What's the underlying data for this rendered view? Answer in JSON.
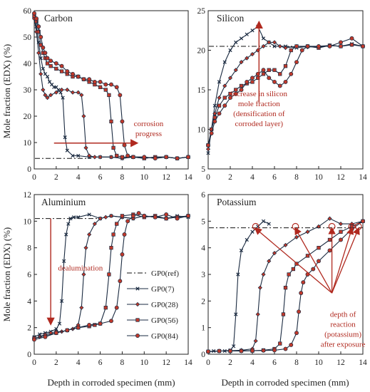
{
  "figure": {
    "ylabel_top": "Mole fraction (EDX) (%)",
    "ylabel_bottom": "Mole fraction (EDX) (%)",
    "xlabel_left": "Depth in  corroded specimen (mm)",
    "xlabel_right": "Depth in  corroded specimen (mm)"
  },
  "colors": {
    "series_line": "#1a2a40",
    "marker_fill": "#c0392b",
    "annotation": "#b0291f",
    "axis": "#222222"
  },
  "chart_data": [
    {
      "id": "carbon",
      "type": "line",
      "title": "Carbon",
      "xlim": [
        0,
        14
      ],
      "ylim": [
        0,
        60
      ],
      "xticks": [
        0,
        2,
        4,
        6,
        8,
        10,
        12,
        14
      ],
      "yticks": [
        0,
        10,
        20,
        30,
        40,
        50,
        60
      ],
      "reference_line": {
        "name": "GP0(ref)",
        "y": 4
      },
      "series": [
        {
          "name": "GP0(7)",
          "x": [
            0,
            0.2,
            0.4,
            0.6,
            0.8,
            1.0,
            1.2,
            1.4,
            1.6,
            1.8,
            2.0,
            2.2,
            2.4,
            2.6,
            2.8,
            3.0,
            3.5,
            4,
            5,
            6,
            7,
            8,
            9,
            10,
            11,
            12,
            13,
            14
          ],
          "y": [
            58,
            54,
            48,
            42,
            38,
            36,
            35,
            33,
            32,
            31,
            31,
            30,
            29,
            27,
            12,
            7,
            5,
            5,
            4.5,
            4.5,
            4.5,
            4,
            4.5,
            4,
            4.5,
            4.5,
            4,
            4.5
          ]
        },
        {
          "name": "GP0(28)",
          "x": [
            0,
            0.2,
            0.4,
            0.6,
            0.8,
            1.0,
            1.2,
            1.5,
            2,
            2.5,
            3,
            3.5,
            4,
            4.3,
            4.5,
            4.7,
            5,
            5.5,
            6,
            7,
            8,
            9,
            10,
            11,
            12,
            13,
            14
          ],
          "y": [
            57,
            52,
            44,
            36,
            30,
            28,
            27,
            28,
            29,
            30,
            30,
            29,
            29,
            28,
            20,
            8,
            5,
            4.5,
            4.5,
            4.5,
            4,
            4.5,
            4.5,
            4,
            4.5,
            4,
            4.5
          ]
        },
        {
          "name": "GP0(56)",
          "x": [
            0,
            0.2,
            0.4,
            0.6,
            0.8,
            1.0,
            1.2,
            1.5,
            2,
            2.5,
            3,
            3.5,
            4,
            4.5,
            5,
            5.5,
            6,
            6.5,
            6.8,
            7.0,
            7.2,
            7.5,
            8,
            9,
            10,
            11,
            12,
            13,
            14
          ],
          "y": [
            58,
            56,
            52,
            47,
            44,
            42,
            40,
            39,
            38,
            37,
            36,
            35,
            35,
            34,
            33,
            32,
            31,
            30,
            28,
            18,
            8,
            5,
            4.5,
            4.5,
            4,
            4.5,
            4.5,
            4,
            4.5
          ]
        },
        {
          "name": "GP0(84)",
          "x": [
            0,
            0.2,
            0.4,
            0.6,
            0.8,
            1.0,
            1.2,
            1.5,
            2,
            2.5,
            3,
            3.5,
            4,
            4.5,
            5,
            5.5,
            6,
            6.5,
            7,
            7.5,
            7.8,
            8.0,
            8.2,
            8.5,
            9,
            10,
            11,
            12,
            13,
            14
          ],
          "y": [
            59,
            57,
            54,
            50,
            46,
            44,
            42,
            41,
            40,
            39,
            37,
            36,
            35,
            34,
            34,
            33,
            33,
            32,
            32,
            31,
            28,
            18,
            9,
            5,
            4.5,
            4.5,
            4,
            4.5,
            4,
            4.5
          ]
        }
      ],
      "annotations": [
        {
          "lines": [
            "corrosion",
            "progress"
          ],
          "x": 10.4,
          "y": 16.2
        }
      ]
    },
    {
      "id": "silicon",
      "type": "line",
      "title": "Silicon",
      "xlim": [
        0,
        14
      ],
      "ylim": [
        5,
        25
      ],
      "xticks": [
        0,
        2,
        4,
        6,
        8,
        10,
        12,
        14
      ],
      "yticks": [
        5,
        10,
        15,
        20,
        25
      ],
      "reference_line": {
        "name": "GP0(ref)",
        "y": 20.5
      },
      "series": [
        {
          "name": "GP0(7)",
          "x": [
            0,
            0.3,
            0.6,
            1.0,
            1.5,
            2.0,
            2.5,
            3.0,
            3.5,
            4.0,
            4.5,
            5.0,
            5.5,
            6.0,
            7,
            8,
            9,
            10,
            11,
            12,
            13,
            14
          ],
          "y": [
            7,
            10,
            13,
            16,
            18.5,
            20,
            21,
            21.5,
            22,
            22.5,
            23,
            21.5,
            21,
            20.5,
            20.5,
            20.3,
            20.5,
            20.4,
            20.6,
            20.5,
            20.8,
            20.5
          ]
        },
        {
          "name": "GP0(28)",
          "x": [
            0,
            0.3,
            0.6,
            1.0,
            1.5,
            2.0,
            2.5,
            3.0,
            3.5,
            4.0,
            4.5,
            5.0,
            5.5,
            6.0,
            6.5,
            7,
            8,
            9,
            10,
            11,
            12,
            13,
            14
          ],
          "y": [
            7.5,
            10,
            12,
            14,
            15.5,
            16.5,
            17.5,
            18.5,
            19,
            19.5,
            20,
            20.5,
            21,
            21,
            20.5,
            20.3,
            20.5,
            20.4,
            20.5,
            20.6,
            20.5,
            20.7,
            20.5
          ]
        },
        {
          "name": "GP0(56)",
          "x": [
            0,
            0.3,
            0.6,
            1.0,
            1.5,
            2.0,
            2.5,
            3.0,
            3.5,
            4.0,
            4.5,
            5.0,
            5.5,
            6.0,
            6.5,
            7.0,
            7.5,
            8,
            9,
            10,
            11,
            12,
            13,
            14
          ],
          "y": [
            8,
            10,
            11.5,
            13,
            14,
            14.5,
            15,
            15.5,
            15.8,
            16,
            16.5,
            17,
            17.5,
            17.5,
            17,
            18,
            20,
            20.5,
            20.5,
            20.3,
            20.6,
            20.5,
            20.7,
            20.5
          ]
        },
        {
          "name": "GP0(84)",
          "x": [
            0,
            0.3,
            0.6,
            1.0,
            1.5,
            2.0,
            2.5,
            3.0,
            3.5,
            4.0,
            4.5,
            5.0,
            5.5,
            6.0,
            6.5,
            7.0,
            7.5,
            8.0,
            8.5,
            9,
            10,
            11,
            12,
            13,
            14
          ],
          "y": [
            8,
            9.5,
            11,
            12,
            13,
            14,
            14.5,
            15,
            16,
            16.5,
            17,
            17.5,
            16.5,
            16,
            15.5,
            16,
            17,
            18.5,
            20,
            20.5,
            20.5,
            20.5,
            21,
            21.5,
            20.5
          ]
        }
      ],
      "annotations": [
        {
          "lines": [
            "increase in silicon",
            "mole fraction",
            "(densification of",
            "corroded layer)"
          ],
          "x": 4.6,
          "y": 14.2
        }
      ]
    },
    {
      "id": "aluminium",
      "type": "line",
      "title": "Aluminium",
      "xlim": [
        0,
        14
      ],
      "ylim": [
        0,
        12
      ],
      "xticks": [
        0,
        2,
        4,
        6,
        8,
        10,
        12,
        14
      ],
      "yticks": [
        0,
        2,
        4,
        6,
        8,
        10,
        12
      ],
      "reference_line": {
        "name": "GP0(ref)",
        "y": 10.2
      },
      "series": [
        {
          "name": "GP0(7)",
          "x": [
            0,
            0.5,
            1.0,
            1.5,
            2.0,
            2.3,
            2.5,
            2.7,
            2.9,
            3.1,
            3.3,
            3.6,
            4,
            5,
            6,
            7,
            8,
            9,
            10,
            11,
            12,
            13,
            14
          ],
          "y": [
            1.3,
            1.5,
            1.6,
            1.7,
            1.9,
            2.3,
            4.0,
            7.0,
            9.0,
            9.8,
            10.2,
            10.3,
            10.3,
            10.5,
            10.2,
            10.4,
            10.3,
            10.2,
            10.4,
            10.3,
            10.2,
            10.4,
            10.3
          ]
        },
        {
          "name": "GP0(28)",
          "x": [
            0,
            0.5,
            1.0,
            1.5,
            2,
            2.5,
            3,
            3.5,
            4.0,
            4.3,
            4.5,
            4.7,
            5.0,
            5.5,
            6.0,
            6.5,
            7,
            8,
            9,
            10,
            11,
            12,
            13,
            14
          ],
          "y": [
            1.2,
            1.3,
            1.5,
            1.6,
            1.7,
            1.7,
            1.8,
            1.9,
            2.2,
            3.5,
            6.0,
            8.0,
            9.0,
            9.8,
            10.2,
            10.3,
            10.4,
            10.3,
            10.2,
            10.4,
            10.3,
            10.2,
            10.3,
            10.4
          ]
        },
        {
          "name": "GP0(56)",
          "x": [
            0,
            1,
            2,
            3,
            4,
            5,
            5.5,
            6.0,
            6.5,
            6.8,
            7.0,
            7.2,
            7.5,
            8,
            9,
            10,
            11,
            12,
            13,
            14
          ],
          "y": [
            1.2,
            1.4,
            1.6,
            1.8,
            2.0,
            2.1,
            2.2,
            2.3,
            3.5,
            6.0,
            8.0,
            9.0,
            9.8,
            10.4,
            10.5,
            10.3,
            10.4,
            10.2,
            10.3,
            10.4
          ]
        },
        {
          "name": "GP0(84)",
          "x": [
            0,
            1,
            2,
            3,
            4,
            5,
            6,
            7.0,
            7.5,
            7.8,
            8.0,
            8.2,
            8.5,
            9.0,
            9.5,
            10,
            11,
            12,
            13,
            14
          ],
          "y": [
            1.1,
            1.3,
            1.6,
            1.8,
            2.0,
            2.2,
            2.3,
            2.5,
            3.5,
            5.5,
            7.5,
            9.0,
            10.0,
            10.4,
            10.6,
            10.4,
            10.3,
            10.5,
            10.2,
            10.4
          ]
        }
      ],
      "annotations": [
        {
          "lines": [
            "dealumination"
          ],
          "x": 4.2,
          "y": 6.3
        }
      ],
      "legend": {
        "placement": "right",
        "entries": [
          "GP0(ref)",
          "GP0(7)",
          "GP0(28)",
          "GP0(56)",
          "GP0(84)"
        ]
      }
    },
    {
      "id": "potassium",
      "type": "line",
      "title": "Potassium",
      "xlim": [
        0,
        14
      ],
      "ylim": [
        0,
        6
      ],
      "xticks": [
        0,
        2,
        4,
        6,
        8,
        10,
        12,
        14
      ],
      "yticks": [
        0,
        1,
        2,
        3,
        4,
        5,
        6
      ],
      "reference_line": {
        "name": "GP0(ref)",
        "y": 4.75
      },
      "series": [
        {
          "name": "GP0(7)",
          "x": [
            0,
            0.5,
            1,
            1.5,
            2.0,
            2.3,
            2.5,
            2.7,
            3.0,
            3.5,
            4.0,
            4.5,
            5.0,
            5.5
          ],
          "y": [
            0.1,
            0.12,
            0.12,
            0.12,
            0.15,
            0.3,
            1.5,
            3.0,
            3.9,
            4.3,
            4.6,
            4.8,
            5.0,
            4.9
          ]
        },
        {
          "name": "GP0(28)",
          "x": [
            0,
            1,
            2,
            3,
            4.0,
            4.3,
            4.5,
            4.7,
            5.0,
            5.5,
            6,
            7,
            8,
            9,
            10,
            11,
            12,
            13,
            14
          ],
          "y": [
            0.1,
            0.12,
            0.13,
            0.15,
            0.2,
            0.5,
            1.5,
            2.5,
            3.0,
            3.5,
            3.8,
            4.1,
            4.4,
            4.6,
            4.8,
            5.1,
            4.9,
            4.9,
            5.0
          ]
        },
        {
          "name": "GP0(56)",
          "x": [
            0,
            1,
            2,
            3,
            4,
            5,
            6.0,
            6.5,
            6.8,
            7.0,
            7.3,
            7.7,
            8,
            9,
            10,
            11,
            12,
            13,
            14
          ],
          "y": [
            0.1,
            0.12,
            0.12,
            0.13,
            0.13,
            0.15,
            0.2,
            0.4,
            1.5,
            2.5,
            3.0,
            3.2,
            3.4,
            3.7,
            4.0,
            4.3,
            4.6,
            4.8,
            5.0
          ]
        },
        {
          "name": "GP0(84)",
          "x": [
            0,
            1,
            2,
            3,
            4,
            5,
            6,
            7,
            7.5,
            8.0,
            8.2,
            8.4,
            8.6,
            9.0,
            9.5,
            10,
            11,
            12,
            13,
            14
          ],
          "y": [
            0.1,
            0.12,
            0.12,
            0.12,
            0.13,
            0.14,
            0.15,
            0.2,
            0.35,
            0.8,
            1.6,
            2.3,
            2.7,
            3.0,
            3.2,
            3.5,
            3.9,
            4.3,
            4.7,
            5.0
          ]
        }
      ],
      "annotations": [
        {
          "lines": [
            "depth of",
            "reaction",
            "(potassium)",
            "after exposure"
          ],
          "x": 12.2,
          "y": 1.4
        }
      ]
    }
  ]
}
